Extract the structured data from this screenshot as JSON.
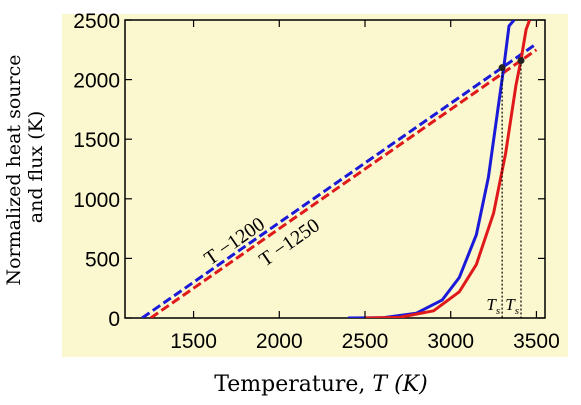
{
  "chart_data": {
    "type": "line",
    "xlabel_main": "Temperature, ",
    "xlabel_var": "T (K)",
    "ylabel_line1": "Normalized heat source",
    "ylabel_line2": "and flux (K)",
    "xlim": [
      1100,
      3550
    ],
    "ylim": [
      0,
      2500
    ],
    "xticks": [
      1500,
      2000,
      2500,
      3000,
      3500
    ],
    "yticks": [
      0,
      500,
      1000,
      1500,
      2000,
      2500
    ],
    "grid": false,
    "background": "#fbf7cf",
    "series": [
      {
        "name": "T −1200",
        "style": "dashed",
        "color": "#1a1ad8",
        "x": [
          1200,
          3500
        ],
        "y": [
          0,
          2300
        ]
      },
      {
        "name": "T −1250",
        "style": "dashed",
        "color": "#e01a1a",
        "x": [
          1250,
          3500
        ],
        "y": [
          0,
          2250
        ]
      },
      {
        "style": "solid",
        "color": "#1a1ad8",
        "x": [
          2400,
          2600,
          2800,
          2950,
          3050,
          3150,
          3220,
          3280,
          3310,
          3340,
          3370
        ],
        "y": [
          0,
          2,
          40,
          150,
          340,
          700,
          1180,
          1800,
          2110,
          2450,
          2500
        ]
      },
      {
        "style": "solid",
        "color": "#e01a1a",
        "x": [
          2500,
          2700,
          2900,
          3050,
          3150,
          3250,
          3320,
          3380,
          3410,
          3440,
          3460
        ],
        "y": [
          0,
          5,
          60,
          220,
          450,
          880,
          1380,
          1950,
          2165,
          2420,
          2500
        ]
      }
    ],
    "intersections": [
      {
        "x": 3300,
        "y": 2100,
        "label_main": "T",
        "label_sub": "s"
      },
      {
        "x": 3410,
        "y": 2160,
        "label_main": "T",
        "label_sub": "s"
      }
    ],
    "annotations": [
      {
        "text": "T −1200",
        "x": 1760,
        "y": 600
      },
      {
        "text": "T −1250",
        "x": 2080,
        "y": 590
      }
    ]
  }
}
